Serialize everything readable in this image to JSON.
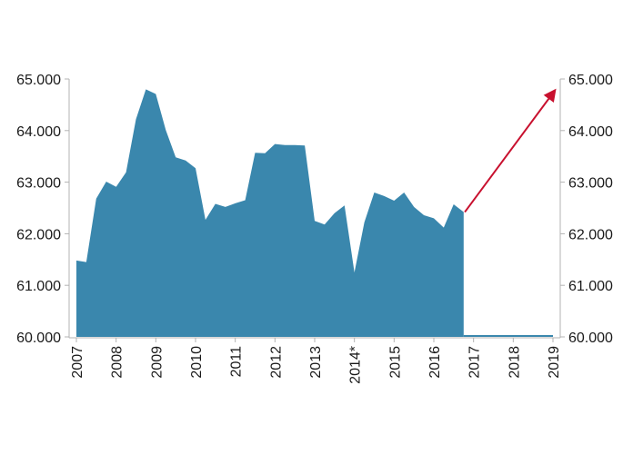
{
  "chart_data": {
    "type": "area",
    "title": "",
    "xlabel": "",
    "ylabel": "",
    "ylim": [
      60000,
      65000
    ],
    "grid": false,
    "legend": "none",
    "y_ticks": [
      "60.000",
      "61.000",
      "62.000",
      "63.000",
      "64.000",
      "65.000"
    ],
    "y_tick_values": [
      60000,
      61000,
      62000,
      63000,
      64000,
      65000
    ],
    "x_ticks": [
      "2007",
      "2008",
      "2009",
      "2010",
      "2011",
      "2012",
      "2013",
      "2014*",
      "2015",
      "2016",
      "2017",
      "2018",
      "2019"
    ],
    "x_range": [
      2007,
      2019
    ],
    "series": [
      {
        "color": "#3a87ad",
        "x": [
          2007.0,
          2007.25,
          2007.5,
          2007.75,
          2008.0,
          2008.25,
          2008.5,
          2008.75,
          2009.0,
          2009.25,
          2009.5,
          2009.75,
          2010.0,
          2010.25,
          2010.5,
          2010.75,
          2011.0,
          2011.25,
          2011.5,
          2011.75,
          2012.0,
          2012.25,
          2012.5,
          2012.75,
          2013.0,
          2013.25,
          2013.5,
          2013.75,
          2014.0,
          2014.25,
          2014.5,
          2014.75,
          2015.0,
          2015.25,
          2015.5,
          2015.75,
          2016.0,
          2016.25,
          2016.5,
          2016.75
        ],
        "values": [
          61480,
          61450,
          62680,
          63010,
          62910,
          63190,
          64220,
          64800,
          64710,
          64010,
          63480,
          63420,
          63270,
          62270,
          62580,
          62520,
          62590,
          62650,
          63570,
          63560,
          63740,
          63720,
          63720,
          63710,
          62250,
          62180,
          62400,
          62550,
          61250,
          62220,
          62800,
          62730,
          62640,
          62800,
          62520,
          62360,
          62300,
          62120,
          62570,
          62420
        ]
      }
    ],
    "baseline_after": {
      "x": [
        2016.75,
        2019.0
      ],
      "value": 60000
    },
    "annotation_arrow": {
      "color": "#c8102e",
      "from": [
        2016.78,
        62420
      ],
      "to": [
        2019.05,
        64780
      ]
    }
  }
}
